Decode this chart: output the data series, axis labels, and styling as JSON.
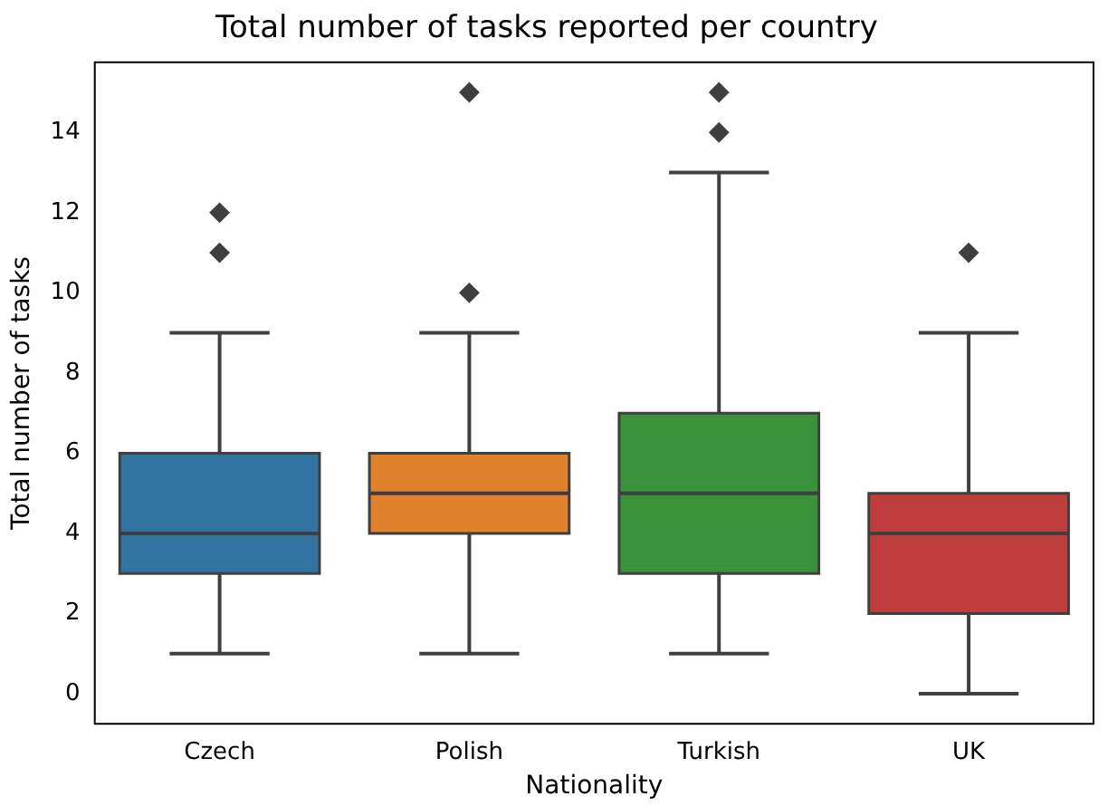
{
  "chart_data": {
    "type": "box",
    "title": "Total number of tasks reported per country",
    "xlabel": "Nationality",
    "ylabel": "Total number of tasks",
    "categories": [
      "Czech",
      "Polish",
      "Turkish",
      "UK"
    ],
    "colors": [
      "#3274a1",
      "#e1812c",
      "#3a923a",
      "#c03d3e"
    ],
    "boxes": [
      {
        "low": 1,
        "q1": 3,
        "median": 4,
        "q3": 6,
        "high": 9,
        "outliers": [
          11,
          12
        ]
      },
      {
        "low": 1,
        "q1": 4,
        "median": 5,
        "q3": 6,
        "high": 9,
        "outliers": [
          10,
          15
        ]
      },
      {
        "low": 1,
        "q1": 3,
        "median": 5,
        "q3": 7,
        "high": 13,
        "outliers": [
          14,
          15
        ]
      },
      {
        "low": 0,
        "q1": 2,
        "median": 4,
        "q3": 5,
        "high": 9,
        "outliers": [
          11
        ]
      }
    ],
    "ylim": [
      -0.75,
      15.75
    ],
    "yticks": [
      0,
      2,
      4,
      6,
      8,
      10,
      12,
      14
    ],
    "grid": false,
    "legend": false,
    "marker": "diamond"
  }
}
